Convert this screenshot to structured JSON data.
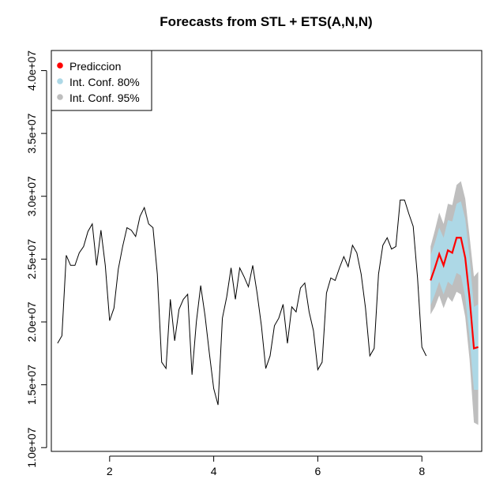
{
  "chart_data": {
    "type": "line",
    "title": "Forecasts from STL +  ETS(A,N,N)",
    "xlabel": "",
    "ylabel": "",
    "xlim": [
      0.88,
      9.15
    ],
    "ylim": [
      9700000.0,
      41600000.0
    ],
    "x_ticks": [
      2,
      4,
      6,
      8
    ],
    "x_tick_labels": [
      "2",
      "4",
      "6",
      "8"
    ],
    "y_ticks": [
      10000000.0,
      15000000.0,
      20000000.0,
      25000000.0,
      30000000.0,
      35000000.0,
      40000000.0
    ],
    "y_tick_labels": [
      "1.0e+07",
      "1.5e+07",
      "2.0e+07",
      "2.5e+07",
      "3.0e+07",
      "3.5e+07",
      "4.0e+07"
    ],
    "grid": false,
    "legend_position": "top-left",
    "legend": [
      {
        "label": "Prediccion",
        "color": "#ff0000"
      },
      {
        "label": "Int. Conf. 80%",
        "color": "#add8e6"
      },
      {
        "label": "Int. Conf. 95%",
        "color": "#bebebe"
      }
    ],
    "colors": {
      "history": "#000000",
      "forecast": "#ff0000",
      "ci80": "#add8e6",
      "ci95": "#bebebe"
    },
    "history": {
      "start": 1.0,
      "step": 0.0833333,
      "values": [
        18.3,
        18.9,
        25.3,
        24.5,
        24.5,
        25.5,
        26.0,
        27.2,
        27.8,
        24.5,
        27.3,
        24.5,
        20.1,
        21.1,
        24.2,
        26.0,
        27.5,
        27.3,
        26.8,
        28.4,
        29.1,
        27.8,
        27.5,
        23.8,
        16.8,
        16.3,
        21.8,
        18.5,
        21.0,
        21.8,
        22.2,
        15.8,
        20.0,
        22.9,
        20.5,
        17.5,
        14.7,
        13.4,
        20.3,
        22.0,
        24.3,
        21.8,
        24.3,
        23.6,
        22.8,
        24.5,
        22.3,
        19.7,
        16.3,
        17.3,
        19.7,
        20.3,
        21.4,
        18.3,
        21.2,
        20.8,
        22.7,
        23.1,
        20.8,
        19.3,
        16.2,
        16.8,
        22.3,
        23.5,
        23.3,
        24.3,
        25.2,
        24.4,
        26.1,
        25.5,
        23.8,
        21.1,
        17.3,
        17.9,
        23.8,
        26.1,
        26.7,
        25.8,
        26.0,
        29.7,
        29.7,
        28.6,
        27.6,
        23.5,
        18.0,
        17.3
      ]
    },
    "forecast": {
      "start": 8.1666667,
      "step": 0.0833333,
      "mean": [
        23.3,
        24.3,
        25.4,
        24.5,
        25.7,
        25.5,
        26.7,
        26.7,
        25.1,
        21.9,
        17.9,
        18.0
      ],
      "lo80": [
        21.3,
        22.2,
        23.2,
        22.2,
        23.2,
        22.9,
        23.9,
        23.7,
        22.0,
        18.7,
        14.6,
        14.6
      ],
      "hi80": [
        25.3,
        26.3,
        27.5,
        26.7,
        28.1,
        28.0,
        29.4,
        29.6,
        28.2,
        25.1,
        21.2,
        21.4
      ],
      "lo95": [
        20.6,
        21.2,
        22.1,
        21.1,
        22.0,
        21.6,
        22.4,
        22.2,
        20.4,
        17.0,
        12.0,
        11.8
      ],
      "hi95": [
        26.0,
        27.3,
        28.7,
        27.8,
        29.4,
        29.3,
        30.9,
        31.2,
        29.8,
        26.8,
        23.6,
        24.0
      ],
      "unit_scale": 1000000
    }
  }
}
